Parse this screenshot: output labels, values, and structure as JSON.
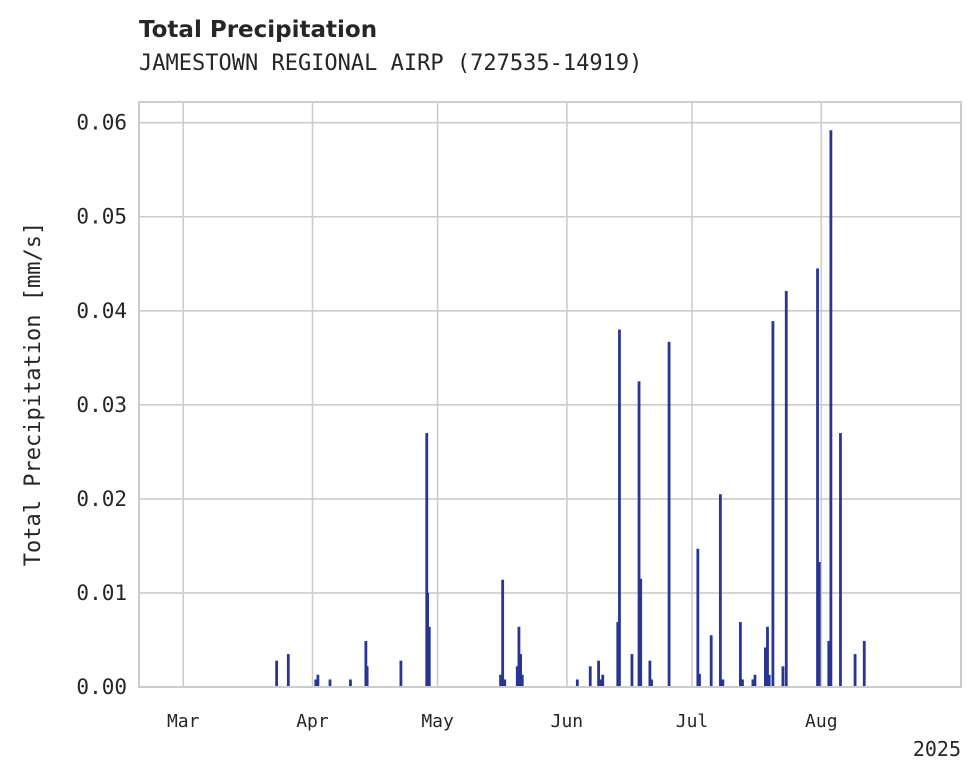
{
  "chart_data": {
    "type": "bar",
    "title": "Total Precipitation",
    "subtitle": "JAMESTOWN REGIONAL AIRP (727535-14919)",
    "ylabel": "Total Precipitation [mm/s]",
    "xlabel": "",
    "year_label": "2025",
    "ylim": [
      0,
      0.0622
    ],
    "xlim_days": [
      -10.6,
      186.5
    ],
    "x_ticks": [
      {
        "label": "Mar",
        "day": 0
      },
      {
        "label": "Apr",
        "day": 31
      },
      {
        "label": "May",
        "day": 61
      },
      {
        "label": "Jun",
        "day": 92
      },
      {
        "label": "Jul",
        "day": 122
      },
      {
        "label": "Aug",
        "day": 153
      }
    ],
    "y_ticks": [
      {
        "label": "0.00",
        "value": 0
      },
      {
        "label": "0.01",
        "value": 0.01
      },
      {
        "label": "0.02",
        "value": 0.02
      },
      {
        "label": "0.03",
        "value": 0.03
      },
      {
        "label": "0.04",
        "value": 0.04
      },
      {
        "label": "0.05",
        "value": 0.05
      },
      {
        "label": "0.06",
        "value": 0.06
      }
    ],
    "grid": true,
    "bar_color": "#283593",
    "series": [
      {
        "name": "Total Precipitation",
        "days": [
          22.4,
          25.2,
          31.8,
          32.3,
          35.2,
          40.1,
          43.8,
          44.1,
          52.2,
          58.4,
          58.6,
          59.0,
          76.1,
          76.6,
          77.1,
          80.1,
          80.5,
          80.9,
          81.3,
          94.5,
          97.6,
          99.6,
          100.1,
          100.6,
          104.2,
          104.6,
          107.6,
          109.3,
          109.7,
          111.9,
          112.3,
          116.5,
          123.4,
          123.8,
          126.6,
          128.8,
          129.4,
          133.6,
          134.1,
          136.6,
          137.1,
          139.6,
          140.1,
          140.5,
          141.4,
          143.8,
          144.6,
          152.1,
          152.5,
          154.8,
          155.3,
          157.6,
          161.1,
          163.3
        ],
        "values": [
          0.0028,
          0.0035,
          0.0008,
          0.0013,
          0.0008,
          0.0008,
          0.0049,
          0.0022,
          0.0028,
          0.027,
          0.01,
          0.0064,
          0.0013,
          0.0114,
          0.0008,
          0.0022,
          0.0064,
          0.0035,
          0.0013,
          0.0008,
          0.0022,
          0.0028,
          0.0008,
          0.0013,
          0.0069,
          0.038,
          0.0035,
          0.0325,
          0.0115,
          0.0028,
          0.0008,
          0.0367,
          0.0147,
          0.0014,
          0.0055,
          0.0205,
          0.0008,
          0.0069,
          0.0008,
          0.0008,
          0.0013,
          0.0042,
          0.0064,
          0.0013,
          0.0389,
          0.0022,
          0.0421,
          0.0445,
          0.0133,
          0.0049,
          0.0592,
          0.027,
          0.0035,
          0.0049
        ]
      }
    ]
  }
}
